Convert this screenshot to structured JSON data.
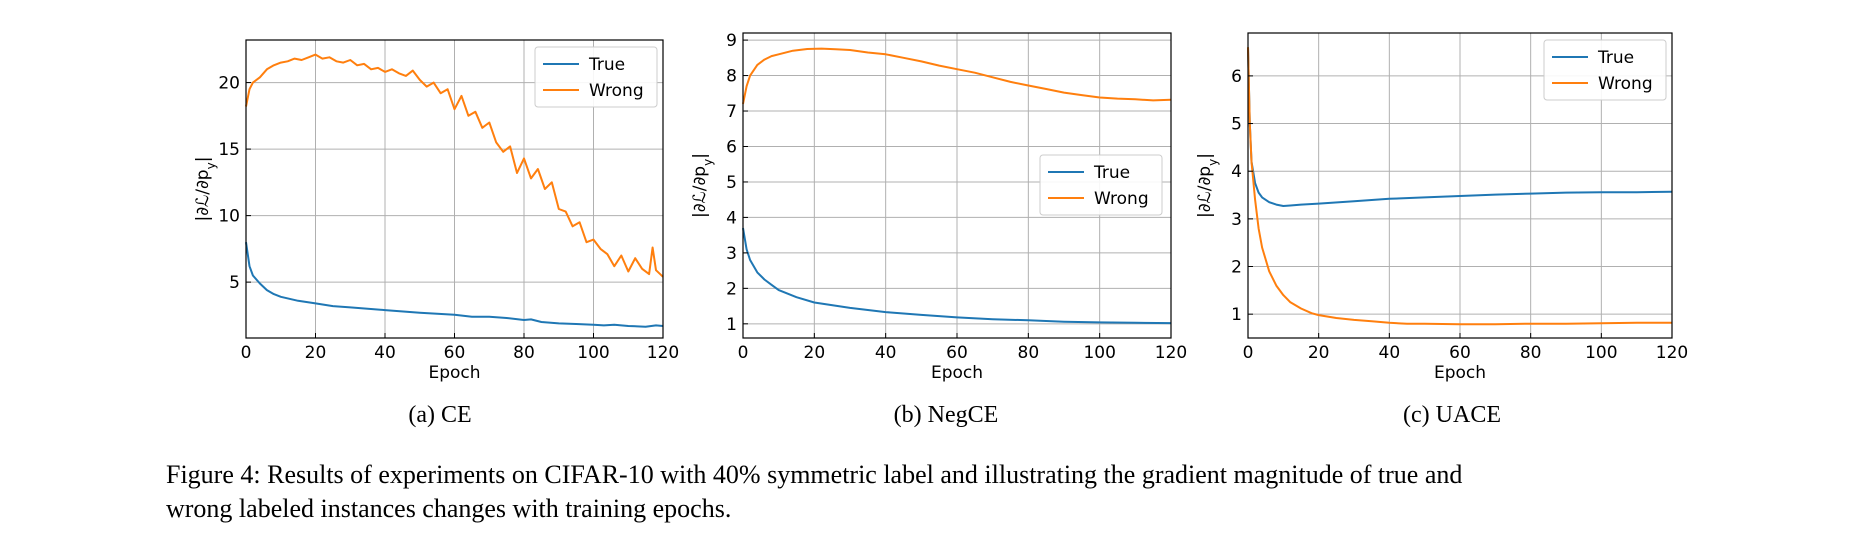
{
  "figure": {
    "caption_line1": "Figure 4: Results of experiments on CIFAR-10 with 40% symmetric label and illustrating the gradient magnitude of true and",
    "caption_line2": "wrong labeled instances changes with training epochs."
  },
  "colors": {
    "true": "#1f77b4",
    "wrong": "#ff7f0e",
    "grid": "#b0b0b0"
  },
  "chart_data": [
    {
      "type": "line",
      "subcaption": "(a) CE",
      "xlabel": "Epoch",
      "ylabel": "|∂ℒ/∂p_y|",
      "xlim": [
        0,
        120
      ],
      "ylim": [
        0.8,
        23.2
      ],
      "xticks": [
        0,
        20,
        40,
        60,
        80,
        100,
        120
      ],
      "yticks": [
        5,
        10,
        15,
        20
      ],
      "grid": true,
      "legend": "top-right",
      "series": [
        {
          "name": "True",
          "x": [
            0,
            1,
            2,
            4,
            6,
            8,
            10,
            15,
            20,
            25,
            30,
            40,
            50,
            60,
            65,
            70,
            75,
            80,
            82,
            85,
            90,
            95,
            100,
            103,
            106,
            110,
            115,
            118,
            120
          ],
          "y": [
            8.0,
            6.2,
            5.5,
            4.9,
            4.4,
            4.1,
            3.9,
            3.6,
            3.4,
            3.2,
            3.1,
            2.9,
            2.7,
            2.55,
            2.4,
            2.4,
            2.3,
            2.15,
            2.2,
            2.0,
            1.9,
            1.85,
            1.8,
            1.75,
            1.8,
            1.7,
            1.65,
            1.75,
            1.7
          ]
        },
        {
          "name": "Wrong",
          "x": [
            0,
            1,
            2,
            4,
            6,
            8,
            10,
            12,
            14,
            16,
            18,
            20,
            22,
            24,
            26,
            28,
            30,
            32,
            34,
            36,
            38,
            40,
            42,
            44,
            46,
            48,
            50,
            52,
            54,
            56,
            58,
            60,
            62,
            64,
            66,
            68,
            70,
            72,
            74,
            76,
            78,
            80,
            82,
            84,
            86,
            88,
            90,
            92,
            94,
            96,
            98,
            100,
            102,
            104,
            106,
            108,
            110,
            112,
            114,
            116,
            117,
            118,
            120
          ],
          "y": [
            18.2,
            19.5,
            20.0,
            20.4,
            21.0,
            21.3,
            21.5,
            21.6,
            21.8,
            21.7,
            21.9,
            22.1,
            21.8,
            21.9,
            21.6,
            21.5,
            21.7,
            21.3,
            21.4,
            21.0,
            21.1,
            20.8,
            21.0,
            20.7,
            20.5,
            20.9,
            20.2,
            19.7,
            20.0,
            19.2,
            19.5,
            18.0,
            19.0,
            17.5,
            17.8,
            16.6,
            17.0,
            15.5,
            14.8,
            15.2,
            13.2,
            14.3,
            12.8,
            13.5,
            12.0,
            12.5,
            10.5,
            10.3,
            9.2,
            9.5,
            8.0,
            8.2,
            7.5,
            7.1,
            6.2,
            7.0,
            5.8,
            6.8,
            6.0,
            5.6,
            7.6,
            5.9,
            5.4
          ]
        }
      ]
    },
    {
      "type": "line",
      "subcaption": "(b) NegCE",
      "xlabel": "Epoch",
      "ylabel": "|∂ℒ/∂p_y|",
      "xlim": [
        0,
        120
      ],
      "ylim": [
        0.6,
        9.2
      ],
      "xticks": [
        0,
        20,
        40,
        60,
        80,
        100,
        120
      ],
      "yticks": [
        1,
        2,
        3,
        4,
        5,
        6,
        7,
        8,
        9
      ],
      "grid": true,
      "legend": "center-right",
      "series": [
        {
          "name": "True",
          "x": [
            0,
            1,
            2,
            4,
            6,
            8,
            10,
            15,
            20,
            30,
            40,
            50,
            60,
            70,
            80,
            90,
            100,
            110,
            120
          ],
          "y": [
            3.7,
            3.1,
            2.8,
            2.45,
            2.25,
            2.1,
            1.95,
            1.75,
            1.6,
            1.45,
            1.33,
            1.25,
            1.18,
            1.13,
            1.1,
            1.06,
            1.04,
            1.03,
            1.02
          ]
        },
        {
          "name": "Wrong",
          "x": [
            0,
            1,
            2,
            4,
            6,
            8,
            10,
            14,
            18,
            22,
            26,
            30,
            35,
            40,
            45,
            50,
            55,
            60,
            65,
            70,
            75,
            80,
            85,
            90,
            95,
            100,
            105,
            110,
            115,
            120
          ],
          "y": [
            7.2,
            7.7,
            8.0,
            8.3,
            8.45,
            8.55,
            8.6,
            8.7,
            8.75,
            8.76,
            8.74,
            8.72,
            8.65,
            8.6,
            8.5,
            8.4,
            8.28,
            8.18,
            8.08,
            7.95,
            7.82,
            7.72,
            7.62,
            7.52,
            7.45,
            7.38,
            7.35,
            7.33,
            7.3,
            7.32
          ]
        }
      ]
    },
    {
      "type": "line",
      "subcaption": "(c) UACE",
      "xlabel": "Epoch",
      "ylabel": "|∂ℒ/∂p_y|",
      "xlim": [
        0,
        120
      ],
      "ylim": [
        0.5,
        6.9
      ],
      "xticks": [
        0,
        20,
        40,
        60,
        80,
        100,
        120
      ],
      "yticks": [
        1,
        2,
        3,
        4,
        5,
        6
      ],
      "grid": true,
      "legend": "top-right",
      "series": [
        {
          "name": "True",
          "x": [
            0,
            0.5,
            1,
            2,
            3,
            4,
            6,
            8,
            10,
            12,
            15,
            20,
            30,
            40,
            50,
            60,
            70,
            80,
            90,
            100,
            110,
            120
          ],
          "y": [
            6.6,
            5.0,
            4.2,
            3.75,
            3.55,
            3.45,
            3.35,
            3.3,
            3.27,
            3.28,
            3.3,
            3.32,
            3.37,
            3.42,
            3.45,
            3.48,
            3.51,
            3.53,
            3.55,
            3.56,
            3.56,
            3.57
          ]
        },
        {
          "name": "Wrong",
          "x": [
            0,
            0.5,
            1,
            2,
            3,
            4,
            6,
            8,
            10,
            12,
            15,
            18,
            20,
            25,
            30,
            35,
            40,
            45,
            50,
            60,
            70,
            80,
            90,
            100,
            110,
            120
          ],
          "y": [
            6.6,
            5.0,
            4.2,
            3.4,
            2.8,
            2.4,
            1.9,
            1.6,
            1.4,
            1.25,
            1.12,
            1.02,
            0.98,
            0.92,
            0.88,
            0.85,
            0.82,
            0.8,
            0.8,
            0.79,
            0.79,
            0.8,
            0.8,
            0.81,
            0.82,
            0.82
          ]
        }
      ]
    }
  ]
}
